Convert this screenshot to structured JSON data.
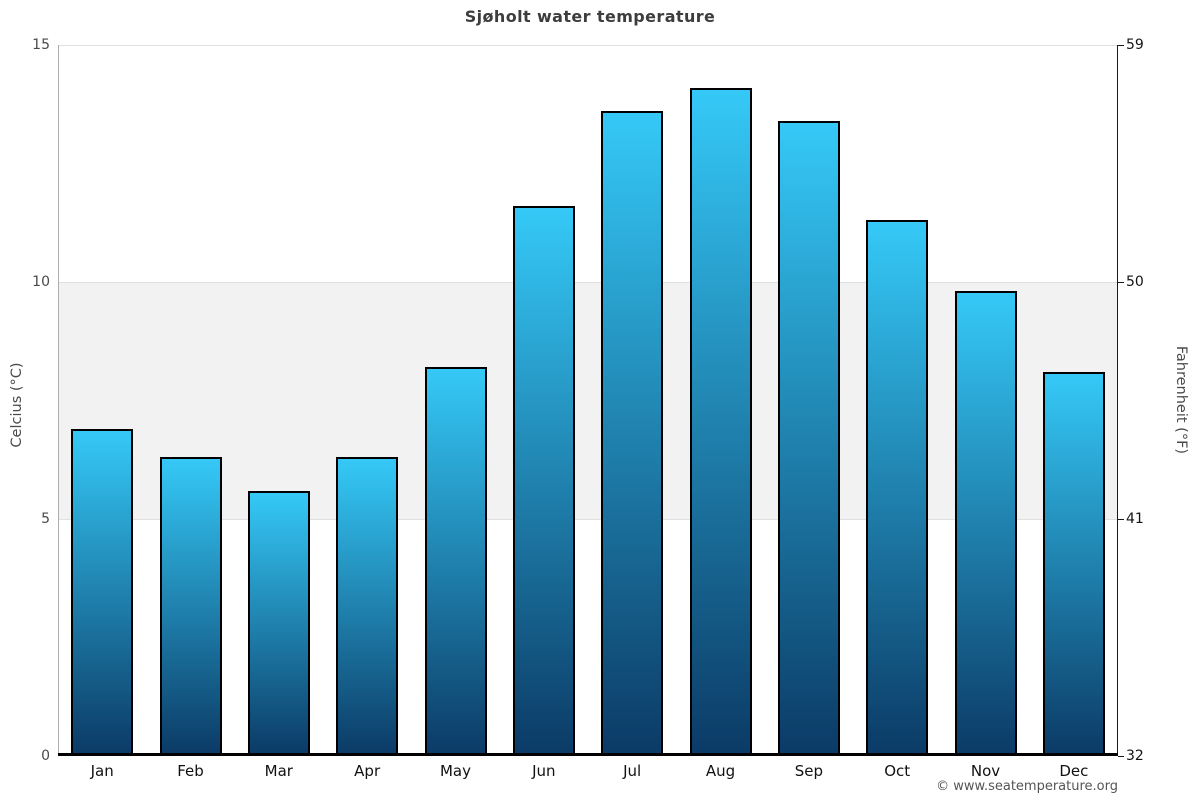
{
  "title": "Sjøholt water temperature",
  "footer": "© www.seatemperature.org",
  "axes": {
    "left_title": "Celcius (°C)",
    "right_title": "Fahrenheit (°F)"
  },
  "chart_data": {
    "type": "bar",
    "title": "Sjøholt water temperature",
    "categories": [
      "Jan",
      "Feb",
      "Mar",
      "Apr",
      "May",
      "Jun",
      "Jul",
      "Aug",
      "Sep",
      "Oct",
      "Nov",
      "Dec"
    ],
    "values": [
      6.9,
      6.3,
      5.6,
      6.3,
      8.2,
      11.6,
      13.6,
      14.1,
      13.4,
      11.3,
      9.8,
      8.1
    ],
    "unit": "°C",
    "ylabel_left": "Celcius (°C)",
    "ylabel_right": "Fahrenheit (°F)",
    "ylim_celsius": [
      0,
      15
    ],
    "yticks_celsius": [
      0,
      5,
      10,
      15
    ],
    "yticks_fahrenheit": [
      32,
      41,
      50,
      59
    ],
    "shaded_band_celsius": [
      5,
      10
    ],
    "grid": "horizontal-ticks-only",
    "legend": "none",
    "colors": {
      "bar_gradient_top": "#35C9F7",
      "bar_gradient_bottom": "#0B3B66",
      "bar_border": "#000000",
      "band_fill": "#F2F2F2",
      "gridline": "#E0E0E0",
      "title_text": "#3D3D3D",
      "left_tick_text": "#4A4A4A",
      "right_tick_text": "#141414",
      "month_text": "#111111",
      "footer_text": "#555555"
    }
  }
}
